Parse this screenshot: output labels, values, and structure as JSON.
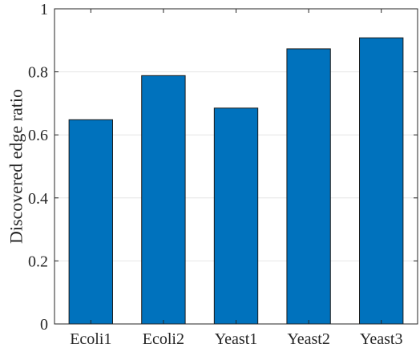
{
  "chart_data": {
    "type": "bar",
    "categories": [
      "Ecoli1",
      "Ecoli2",
      "Yeast1",
      "Yeast2",
      "Yeast3"
    ],
    "values": [
      0.648,
      0.788,
      0.685,
      0.873,
      0.908
    ],
    "xlabel": "",
    "ylabel": "Discovered edge ratio",
    "ylim": [
      0,
      1
    ],
    "yticks": [
      0,
      0.2,
      0.4,
      0.6,
      0.8,
      1
    ],
    "ytick_labels": [
      "0",
      "0.2",
      "0.4",
      "0.6",
      "0.8",
      "1"
    ],
    "grid": "horizontal",
    "bar_color": "#0072BD",
    "bar_edge_color": "#1a1a1a"
  }
}
